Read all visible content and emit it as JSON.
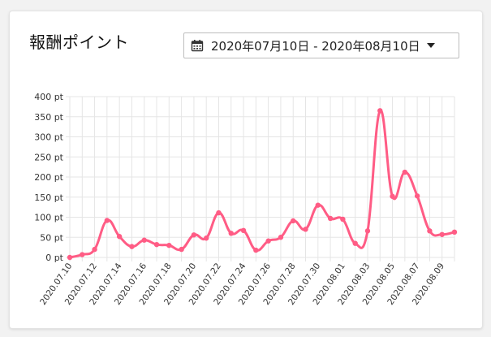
{
  "card": {
    "title": "報酬ポイント"
  },
  "date_range": {
    "icon": "calendar-icon",
    "label": "2020年07月10日 - 2020年08月10日"
  },
  "colors": {
    "line": "#ff5c85",
    "grid": "#e5e5e5"
  },
  "chart_data": {
    "type": "line",
    "title": "",
    "xlabel": "",
    "ylabel": "",
    "y_unit_suffix": " pt",
    "ylim": [
      0,
      400
    ],
    "y_ticks": [
      0,
      50,
      100,
      150,
      200,
      250,
      300,
      350,
      400
    ],
    "grid": true,
    "x_tick_labels": [
      "2020.07.10",
      "2020.07.12",
      "2020.07.14",
      "2020.07.16",
      "2020.07.18",
      "2020.07.20",
      "2020.07.22",
      "2020.07.24",
      "2020.07.26",
      "2020.07.28",
      "2020.07.30",
      "2020.08.01",
      "2020.08.03",
      "2020.08.05",
      "2020.08.07",
      "2020.08.09"
    ],
    "x": [
      "2020.07.10",
      "2020.07.11",
      "2020.07.12",
      "2020.07.13",
      "2020.07.14",
      "2020.07.15",
      "2020.07.16",
      "2020.07.17",
      "2020.07.18",
      "2020.07.19",
      "2020.07.20",
      "2020.07.21",
      "2020.07.22",
      "2020.07.23",
      "2020.07.24",
      "2020.07.25",
      "2020.07.26",
      "2020.07.27",
      "2020.07.28",
      "2020.07.29",
      "2020.07.30",
      "2020.07.31",
      "2020.08.01",
      "2020.08.02",
      "2020.08.03",
      "2020.08.04",
      "2020.08.05",
      "2020.08.06",
      "2020.08.07",
      "2020.08.08",
      "2020.08.09",
      "2020.08.10"
    ],
    "series": [
      {
        "values": [
          0,
          7,
          20,
          92,
          52,
          27,
          43,
          32,
          30,
          20,
          56,
          48,
          111,
          60,
          67,
          18,
          41,
          50,
          91,
          70,
          130,
          97,
          95,
          35,
          66,
          365,
          152,
          212,
          153,
          66,
          57,
          63
        ]
      }
    ]
  }
}
